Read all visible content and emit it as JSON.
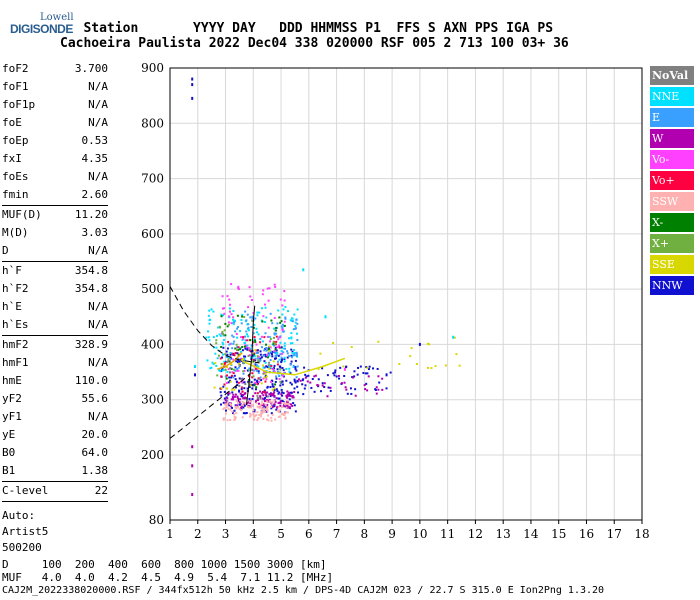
{
  "logo": {
    "line1": "Lowell",
    "line2": "DIGISONDE"
  },
  "header": {
    "line1": "   Station       YYYY DAY   DDD HHMMSS P1  FFS S AXN PPS IGA PS",
    "line2": "Cachoeira Paulista 2022 Dec04 338 020000 RSF 005 2 713 100 03+ 36"
  },
  "params_group1": [
    {
      "name": "foF2",
      "value": "3.700"
    },
    {
      "name": "foF1",
      "value": "N/A"
    },
    {
      "name": "foF1p",
      "value": "N/A"
    },
    {
      "name": "foE",
      "value": "N/A"
    },
    {
      "name": "foEp",
      "value": "0.53"
    },
    {
      "name": "fxI",
      "value": "4.35"
    },
    {
      "name": "foEs",
      "value": "N/A"
    },
    {
      "name": "fmin",
      "value": "2.60"
    }
  ],
  "params_group2": [
    {
      "name": "MUF(D)",
      "value": "11.20"
    },
    {
      "name": "M(D)",
      "value": "3.03"
    },
    {
      "name": "D",
      "value": "N/A"
    }
  ],
  "params_group3": [
    {
      "name": "h`F",
      "value": "354.8"
    },
    {
      "name": "h`F2",
      "value": "354.8"
    },
    {
      "name": "h`E",
      "value": "N/A"
    },
    {
      "name": "h`Es",
      "value": "N/A"
    }
  ],
  "params_group4": [
    {
      "name": "hmF2",
      "value": "328.9"
    },
    {
      "name": "hmF1",
      "value": "N/A"
    },
    {
      "name": "hmE",
      "value": "110.0"
    },
    {
      "name": "yF2",
      "value": "55.6"
    },
    {
      "name": "yF1",
      "value": "N/A"
    },
    {
      "name": "yE",
      "value": "20.0"
    },
    {
      "name": "B0",
      "value": "64.0"
    },
    {
      "name": "B1",
      "value": "1.38"
    }
  ],
  "params_group5": [
    {
      "name": "C-level",
      "value": "22"
    }
  ],
  "auto": {
    "line1": "Auto:",
    "line2": "Artist5",
    "line3": "500200"
  },
  "legend": [
    {
      "label": "NoVal",
      "color": "#808080"
    },
    {
      "label": "NNE",
      "color": "#00e0ff"
    },
    {
      "label": "E",
      "color": "#3aa0ff"
    },
    {
      "label": "W",
      "color": "#b000b0"
    },
    {
      "label": "Vo-",
      "color": "#ff40ff"
    },
    {
      "label": "Vo+",
      "color": "#ff0040"
    },
    {
      "label": "SSW",
      "color": "#ffb0b0"
    },
    {
      "label": "X-",
      "color": "#008000"
    },
    {
      "label": "X+",
      "color": "#70b040"
    },
    {
      "label": "SSE",
      "color": "#d8d800"
    },
    {
      "label": "NNW",
      "color": "#1010d0"
    }
  ],
  "muf_table": {
    "d_line": "D     100  200  400  600  800 1000 1500 3000 [km]",
    "m_line": "MUF   4.0  4.0  4.2  4.5  4.9  5.4  7.1 11.2 [MHz]"
  },
  "footer": "CAJ2M_2022338020000.RSF / 344fx512h 50 kHz 2.5 km / DPS-4D CAJ2M 023 / 22.7 S 315.0 E Ion2Png 1.3.20",
  "chart_data": {
    "type": "scatter",
    "xlim": [
      1,
      18
    ],
    "ylim": [
      80,
      900
    ],
    "x_ticks": [
      "1",
      "2",
      "3",
      "4",
      "5",
      "6",
      "7",
      "8",
      "9",
      "10",
      "11",
      "12",
      "13",
      "14",
      "15",
      "16",
      "17",
      "18"
    ],
    "y_ticks": [
      "80",
      "200",
      "300",
      "400",
      "500",
      "600",
      "700",
      "800",
      "900"
    ],
    "grid": true,
    "clusters": [
      {
        "color": "#1010d0",
        "xr": [
          2.8,
          5.6
        ],
        "yr": [
          275,
          395
        ],
        "n": 260
      },
      {
        "color": "#b000b0",
        "xr": [
          3.0,
          5.5
        ],
        "yr": [
          285,
          315
        ],
        "n": 120
      },
      {
        "color": "#ffb0b0",
        "xr": [
          2.9,
          5.3
        ],
        "yr": [
          262,
          300
        ],
        "n": 120
      },
      {
        "color": "#00e0ff",
        "xr": [
          2.3,
          5.7
        ],
        "yr": [
          350,
          470
        ],
        "n": 150
      },
      {
        "color": "#3aa0ff",
        "xr": [
          3.0,
          5.6
        ],
        "yr": [
          340,
          460
        ],
        "n": 120
      },
      {
        "color": "#ff40ff",
        "xr": [
          2.8,
          5.2
        ],
        "yr": [
          330,
          510
        ],
        "n": 90
      },
      {
        "color": "#ff0040",
        "xr": [
          2.8,
          5.0
        ],
        "yr": [
          310,
          420
        ],
        "n": 50
      },
      {
        "color": "#008000",
        "xr": [
          2.8,
          5.2
        ],
        "yr": [
          320,
          470
        ],
        "n": 40
      },
      {
        "color": "#70b040",
        "xr": [
          2.6,
          5.0
        ],
        "yr": [
          320,
          450
        ],
        "n": 30
      },
      {
        "color": "#d8d800",
        "xr": [
          2.6,
          5.0
        ],
        "yr": [
          310,
          400
        ],
        "n": 30
      },
      {
        "color": "#808080",
        "xr": [
          2.9,
          4.6
        ],
        "yr": [
          300,
          380
        ],
        "n": 20
      },
      {
        "color": "#1010d0",
        "xr": [
          5.6,
          9.0
        ],
        "yr": [
          310,
          360
        ],
        "n": 60
      },
      {
        "color": "#b000b0",
        "xr": [
          5.6,
          8.8
        ],
        "yr": [
          305,
          345
        ],
        "n": 30
      },
      {
        "color": "#d8d800",
        "xr": [
          6.0,
          11.5
        ],
        "yr": [
          355,
          415
        ],
        "n": 20
      }
    ],
    "points": [
      {
        "x": 1.8,
        "y": 880,
        "color": "#1010d0"
      },
      {
        "x": 1.8,
        "y": 870,
        "color": "#1010d0"
      },
      {
        "x": 1.8,
        "y": 845,
        "color": "#1010d0"
      },
      {
        "x": 1.8,
        "y": 215,
        "color": "#b000b0"
      },
      {
        "x": 1.8,
        "y": 180,
        "color": "#b000b0"
      },
      {
        "x": 1.8,
        "y": 127,
        "color": "#b000b0"
      },
      {
        "x": 1.9,
        "y": 360,
        "color": "#00e0ff"
      },
      {
        "x": 1.9,
        "y": 345,
        "color": "#1010d0"
      },
      {
        "x": 10.0,
        "y": 400,
        "color": "#1010d0"
      },
      {
        "x": 11.2,
        "y": 413,
        "color": "#00e0ff"
      },
      {
        "x": 5.8,
        "y": 535,
        "color": "#00e0ff"
      },
      {
        "x": 6.6,
        "y": 450,
        "color": "#00e0ff"
      },
      {
        "x": 7.3,
        "y": 355,
        "color": "#ff40ff"
      },
      {
        "x": 8.8,
        "y": 345,
        "color": "#1010d0"
      }
    ],
    "trace_curves": [
      {
        "color": "#f0a000",
        "points": [
          [
            2.7,
            355
          ],
          [
            3.0,
            360
          ],
          [
            3.3,
            370
          ],
          [
            3.6,
            385
          ]
        ]
      },
      {
        "color": "#d8d800",
        "points": [
          [
            3.6,
            370
          ],
          [
            4.5,
            350
          ],
          [
            5.5,
            345
          ],
          [
            6.5,
            360
          ],
          [
            7.3,
            375
          ]
        ]
      }
    ],
    "dashed_curves": [
      {
        "points": [
          [
            1,
            505
          ],
          [
            1.5,
            460
          ],
          [
            2.0,
            425
          ],
          [
            2.5,
            398
          ],
          [
            3.0,
            380
          ],
          [
            3.5,
            372
          ],
          [
            4.0,
            368
          ],
          [
            4.2,
            367
          ]
        ]
      },
      {
        "points": [
          [
            1,
            230
          ],
          [
            1.5,
            250
          ],
          [
            2.0,
            270
          ],
          [
            2.5,
            290
          ],
          [
            3.0,
            310
          ],
          [
            3.5,
            330
          ],
          [
            3.9,
            348
          ]
        ]
      }
    ],
    "solid_curves": [
      {
        "points": [
          [
            3.75,
            290
          ],
          [
            3.85,
            330
          ],
          [
            3.95,
            380
          ],
          [
            4.0,
            440
          ],
          [
            4.05,
            470
          ]
        ]
      }
    ]
  }
}
